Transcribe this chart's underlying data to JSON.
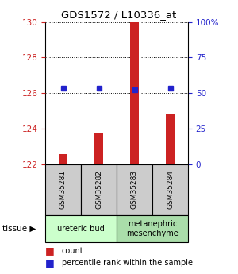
{
  "title": "GDS1572 / L10336_at",
  "samples": [
    "GSM35281",
    "GSM35282",
    "GSM35283",
    "GSM35284"
  ],
  "count_values": [
    122.6,
    123.8,
    130.0,
    124.8
  ],
  "percentile_values": [
    126.3,
    126.3,
    126.2,
    126.3
  ],
  "ylim": [
    122,
    130
  ],
  "yticks": [
    122,
    124,
    126,
    128,
    130
  ],
  "y2ticks": [
    0,
    25,
    50,
    75,
    100
  ],
  "y2labels": [
    "0",
    "25",
    "50",
    "75",
    "100%"
  ],
  "bar_color": "#cc2222",
  "dot_color": "#2222cc",
  "tissue_groups": [
    {
      "label": "ureteric bud",
      "samples": [
        0,
        1
      ],
      "color": "#ccffcc"
    },
    {
      "label": "metanephric\nmesenchyme",
      "samples": [
        2,
        3
      ],
      "color": "#aaddaa"
    }
  ],
  "left_tick_color": "#cc2222",
  "right_tick_color": "#2222cc",
  "bar_width": 0.25,
  "grid_color": "#333333",
  "legend_count_label": "count",
  "legend_pct_label": "percentile rank within the sample"
}
